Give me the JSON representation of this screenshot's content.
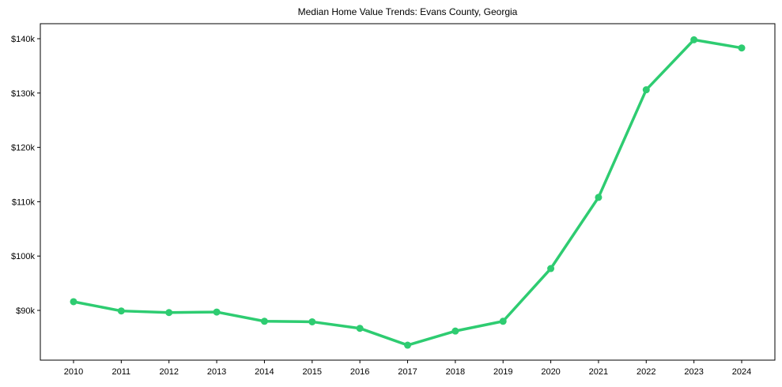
{
  "chart_data": {
    "type": "line",
    "title": "Median Home Value Trends: Evans County, Georgia",
    "xlabel": "",
    "ylabel": "",
    "categories": [
      "2010",
      "2011",
      "2012",
      "2013",
      "2014",
      "2015",
      "2016",
      "2017",
      "2018",
      "2019",
      "2020",
      "2021",
      "2022",
      "2023",
      "2024"
    ],
    "series": [
      {
        "name": "Median Home Value",
        "color": "#2ecc71",
        "values": [
          91600,
          89900,
          89600,
          89700,
          88000,
          87900,
          86700,
          83600,
          86200,
          88000,
          97700,
          110800,
          130600,
          139800,
          138300
        ]
      }
    ],
    "yticks": [
      90000,
      100000,
      110000,
      120000,
      130000,
      140000
    ],
    "ytick_labels": [
      "$90k",
      "$100k",
      "$110k",
      "$120k",
      "$130k",
      "$140k"
    ],
    "ylim": [
      81800,
      141400
    ],
    "grid": false,
    "legend": null,
    "markers": true
  }
}
